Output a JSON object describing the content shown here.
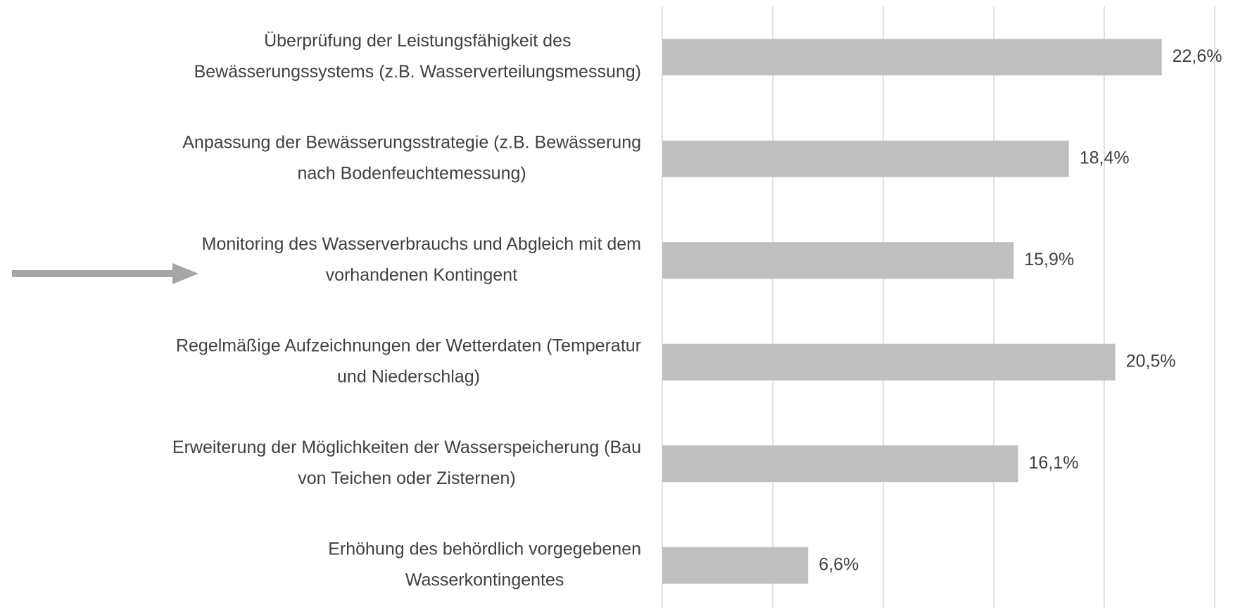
{
  "chart_data": {
    "type": "bar",
    "orientation": "horizontal",
    "categories": [
      [
        "Überprüfung der Leistungsfähigkeit des",
        "Bewässerungssystems (z.B. Wasserverteilungsmessung)"
      ],
      [
        "Anpassung der Bewässerungsstrategie (z.B. Bewässerung",
        "nach Bodenfeuchtemessung)"
      ],
      [
        "Monitoring des Wasserverbrauchs und Abgleich mit dem",
        "vorhandenen Kontingent"
      ],
      [
        "Regelmäßige Aufzeichnungen der Wetterdaten (Temperatur",
        "und Niederschlag)"
      ],
      [
        "Erweiterung der Möglichkeiten der Wasserspeicherung (Bau",
        "von Teichen oder Zisternen)"
      ],
      [
        "Erhöhung des behördlich vorgegebenen",
        "Wasserkontingentes"
      ]
    ],
    "values": [
      22.6,
      18.4,
      15.9,
      20.5,
      16.1,
      6.6
    ],
    "value_labels": [
      "22,6%",
      "18,4%",
      "15,9%",
      "20,5%",
      "16,1%",
      "6,6%"
    ],
    "color": "#bfbfbf",
    "xlim": [
      0,
      25
    ],
    "xticks": [
      0,
      5,
      10,
      15,
      20,
      25
    ],
    "grid": true
  }
}
